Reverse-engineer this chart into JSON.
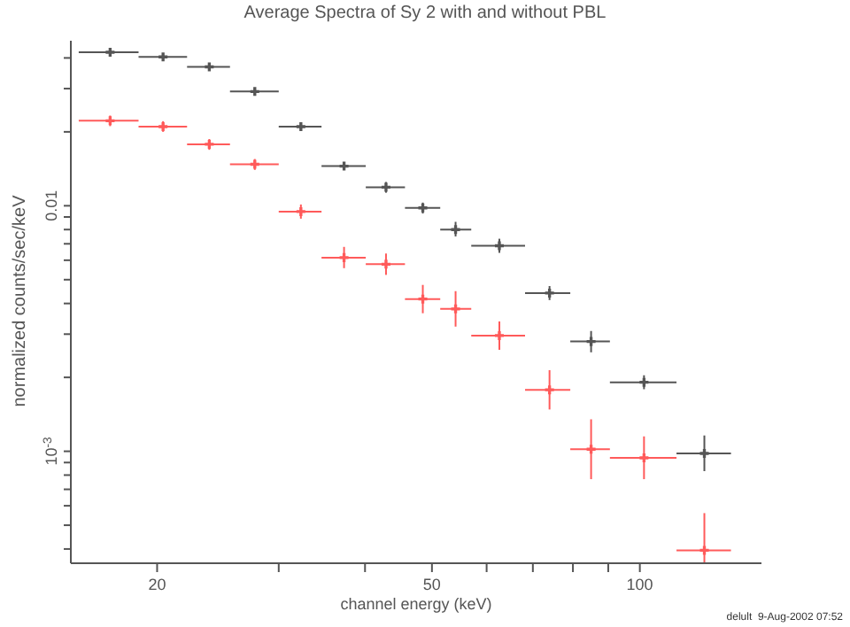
{
  "chart_data": {
    "type": "scatter",
    "title": "Average Spectra of Sy 2 with and without PBL",
    "xlabel": "channel energy (keV)",
    "ylabel": "normalized counts/sec/keV",
    "log": "xy",
    "marker": "cross",
    "xlim": [
      15,
      150
    ],
    "ylim": [
      0.00035,
      0.047
    ],
    "xticks": [
      20,
      {
        "value": 30,
        "label": null
      },
      {
        "value": 40,
        "label": null
      },
      50,
      {
        "value": 60,
        "label": null
      },
      {
        "value": 70,
        "label": null
      },
      {
        "value": 80,
        "label": null
      },
      {
        "value": 90,
        "label": null
      },
      100
    ],
    "yticks": [
      {
        "value": 0.0004,
        "label": null
      },
      {
        "value": 0.0005,
        "label": null
      },
      {
        "value": 0.0006,
        "label": null
      },
      {
        "value": 0.0007,
        "label": null
      },
      {
        "value": 0.0008,
        "label": null
      },
      {
        "value": 0.0009,
        "label": null
      },
      {
        "value": 0.001,
        "label": "10$^{-3}$"
      },
      {
        "value": 0.002,
        "label": null
      },
      {
        "value": 0.003,
        "label": null
      },
      {
        "value": 0.004,
        "label": null
      },
      {
        "value": 0.005,
        "label": null
      },
      {
        "value": 0.006,
        "label": null
      },
      {
        "value": 0.007,
        "label": null
      },
      {
        "value": 0.008,
        "label": null
      },
      {
        "value": 0.009,
        "label": null
      },
      0.01,
      {
        "value": 0.02,
        "label": null
      },
      {
        "value": 0.03,
        "label": null
      },
      {
        "value": 0.04,
        "label": null
      }
    ],
    "x": [
      17.1,
      20.4,
      23.8,
      27.7,
      32.3,
      37.3,
      42.9,
      48.5,
      54.1,
      62.6,
      74.0,
      85.0,
      101.4,
      124
    ],
    "series": [
      {
        "color": "#555555",
        "values": [
          0.0422,
          0.0404,
          0.0368,
          0.0292,
          0.021,
          0.0145,
          0.0119,
          0.0098,
          0.008,
          0.00687,
          0.00441,
          0.0028,
          0.00191,
          0.00098
        ],
        "errors": [
          [
            0.0408,
            0.0436
          ],
          [
            0.0391,
            0.0418
          ],
          [
            0.0356,
            0.0381
          ],
          [
            0.0282,
            0.0302
          ],
          [
            0.0203,
            0.0217
          ],
          [
            0.014,
            0.015
          ],
          [
            0.0113,
            0.0125
          ],
          [
            0.0093,
            0.0103
          ],
          [
            0.0075,
            0.0086
          ],
          [
            0.00643,
            0.00734
          ],
          [
            0.00413,
            0.00471
          ],
          [
            0.00253,
            0.00309
          ],
          [
            0.00179,
            0.00204
          ],
          [
            0.00083,
            0.00116
          ]
        ],
        "xerrors": [
          [
            15.4,
            18.8
          ],
          [
            18.8,
            22.1
          ],
          [
            22.1,
            25.5
          ],
          [
            25.5,
            30.0
          ],
          [
            30.0,
            34.6
          ],
          [
            34.6,
            40.1
          ],
          [
            40.1,
            45.7
          ],
          [
            45.7,
            51.4
          ],
          [
            51.4,
            57.0
          ],
          [
            57.0,
            68.2
          ],
          [
            68.2,
            79.3
          ],
          [
            79.3,
            90.5
          ],
          [
            90.5,
            113
          ],
          [
            113,
            135.5
          ]
        ]
      },
      {
        "color": "#ff5a5a",
        "values": [
          0.0222,
          0.021,
          0.0178,
          0.01476,
          0.00947,
          0.00615,
          0.00578,
          0.00417,
          0.0038,
          0.00296,
          0.00178,
          0.00102,
          0.00094,
          0.000395
        ],
        "errors": [
          [
            0.0211,
            0.0233
          ],
          [
            0.02,
            0.0221
          ],
          [
            0.0169,
            0.0187
          ],
          [
            0.014,
            0.0155
          ],
          [
            0.00886,
            0.01012
          ],
          [
            0.00557,
            0.0068
          ],
          [
            0.00523,
            0.00639
          ],
          [
            0.00365,
            0.00476
          ],
          [
            0.00322,
            0.00449
          ],
          [
            0.00259,
            0.00338
          ],
          [
            0.00148,
            0.00214
          ],
          [
            0.00077,
            0.00135
          ],
          [
            0.00077,
            0.00115
          ],
          [
            0.00035,
            0.00056
          ]
        ],
        "xerrors": [
          [
            15.4,
            18.8
          ],
          [
            18.8,
            22.1
          ],
          [
            22.1,
            25.5
          ],
          [
            25.5,
            30.0
          ],
          [
            30.0,
            34.6
          ],
          [
            34.6,
            40.1
          ],
          [
            40.1,
            45.7
          ],
          [
            45.7,
            51.4
          ],
          [
            51.4,
            57.0
          ],
          [
            57.0,
            68.2
          ],
          [
            68.2,
            79.3
          ],
          [
            79.3,
            90.5
          ],
          [
            90.5,
            113
          ],
          [
            113,
            135.5
          ]
        ]
      }
    ],
    "annotations": [
      "delult  9-Aug-2002 07:52"
    ]
  }
}
